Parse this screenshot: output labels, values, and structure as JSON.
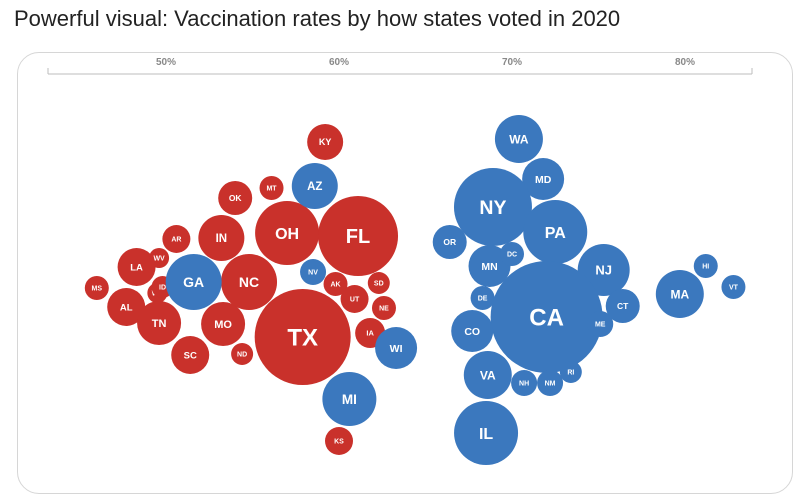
{
  "title": "Powerful visual: Vaccination rates by how states voted in 2020",
  "colors": {
    "red": "#C9312B",
    "blue": "#3B78BE",
    "axis": "#bdbdbd",
    "tick_text": "#888888"
  },
  "chart_data": {
    "type": "scatter",
    "subtype": "bubble",
    "x_axis": {
      "position": "top",
      "ticks": [
        50,
        60,
        70,
        80
      ],
      "tick_labels": [
        "50%",
        "60%",
        "70%",
        "80%"
      ],
      "range": [
        43,
        84
      ]
    },
    "series": [
      {
        "color": "red",
        "points": [
          {
            "state": "MS",
            "x": 46.0,
            "size": 12
          },
          {
            "state": "LA",
            "x": 48.3,
            "size": 19
          },
          {
            "state": "AL",
            "x": 47.7,
            "size": 19
          },
          {
            "state": "WY",
            "x": 49.5,
            "size": 10
          },
          {
            "state": "WV",
            "x": 49.6,
            "size": 10
          },
          {
            "state": "ID",
            "x": 49.8,
            "size": 11
          },
          {
            "state": "AR",
            "x": 50.6,
            "size": 14
          },
          {
            "state": "TN",
            "x": 49.6,
            "size": 22
          },
          {
            "state": "SC",
            "x": 51.4,
            "size": 19
          },
          {
            "state": "IN",
            "x": 53.2,
            "size": 23
          },
          {
            "state": "OK",
            "x": 54.0,
            "size": 17
          },
          {
            "state": "MO",
            "x": 53.3,
            "size": 22
          },
          {
            "state": "NC",
            "x": 54.8,
            "size": 28
          },
          {
            "state": "ND",
            "x": 54.4,
            "size": 11
          },
          {
            "state": "MT",
            "x": 56.1,
            "size": 12
          },
          {
            "state": "OH",
            "x": 57.0,
            "size": 32
          },
          {
            "state": "TX",
            "x": 57.9,
            "size": 48
          },
          {
            "state": "KY",
            "x": 59.2,
            "size": 18
          },
          {
            "state": "FL",
            "x": 61.1,
            "size": 40
          },
          {
            "state": "AK",
            "x": 59.8,
            "size": 12
          },
          {
            "state": "UT",
            "x": 60.9,
            "size": 14
          },
          {
            "state": "SD",
            "x": 62.3,
            "size": 11
          },
          {
            "state": "NE",
            "x": 62.6,
            "size": 12
          },
          {
            "state": "IA",
            "x": 61.8,
            "size": 15
          },
          {
            "state": "KS",
            "x": 60.0,
            "size": 14
          }
        ]
      },
      {
        "color": "blue",
        "points": [
          {
            "state": "GA",
            "x": 51.6,
            "size": 28
          },
          {
            "state": "AZ",
            "x": 58.6,
            "size": 23
          },
          {
            "state": "NV",
            "x": 58.5,
            "size": 13
          },
          {
            "state": "WI",
            "x": 63.3,
            "size": 21
          },
          {
            "state": "MI",
            "x": 60.6,
            "size": 27
          },
          {
            "state": "WA",
            "x": 70.4,
            "size": 24
          },
          {
            "state": "MD",
            "x": 71.8,
            "size": 21
          },
          {
            "state": "NY",
            "x": 68.9,
            "size": 39
          },
          {
            "state": "PA",
            "x": 72.5,
            "size": 32
          },
          {
            "state": "OR",
            "x": 66.4,
            "size": 17
          },
          {
            "state": "MN",
            "x": 68.7,
            "size": 21
          },
          {
            "state": "DC",
            "x": 70.0,
            "size": 12
          },
          {
            "state": "NJ",
            "x": 75.3,
            "size": 26
          },
          {
            "state": "CT",
            "x": 76.4,
            "size": 17
          },
          {
            "state": "DE",
            "x": 68.3,
            "size": 12
          },
          {
            "state": "CA",
            "x": 72.0,
            "size": 56
          },
          {
            "state": "ME",
            "x": 75.1,
            "size": 13
          },
          {
            "state": "CO",
            "x": 67.7,
            "size": 21
          },
          {
            "state": "VA",
            "x": 68.6,
            "size": 24
          },
          {
            "state": "NH",
            "x": 70.7,
            "size": 13
          },
          {
            "state": "NM",
            "x": 72.2,
            "size": 13
          },
          {
            "state": "RI",
            "x": 73.4,
            "size": 11
          },
          {
            "state": "IL",
            "x": 68.5,
            "size": 32
          },
          {
            "state": "MA",
            "x": 79.7,
            "size": 24
          },
          {
            "state": "HI",
            "x": 81.2,
            "size": 12
          },
          {
            "state": "VT",
            "x": 82.8,
            "size": 12
          }
        ]
      }
    ]
  }
}
